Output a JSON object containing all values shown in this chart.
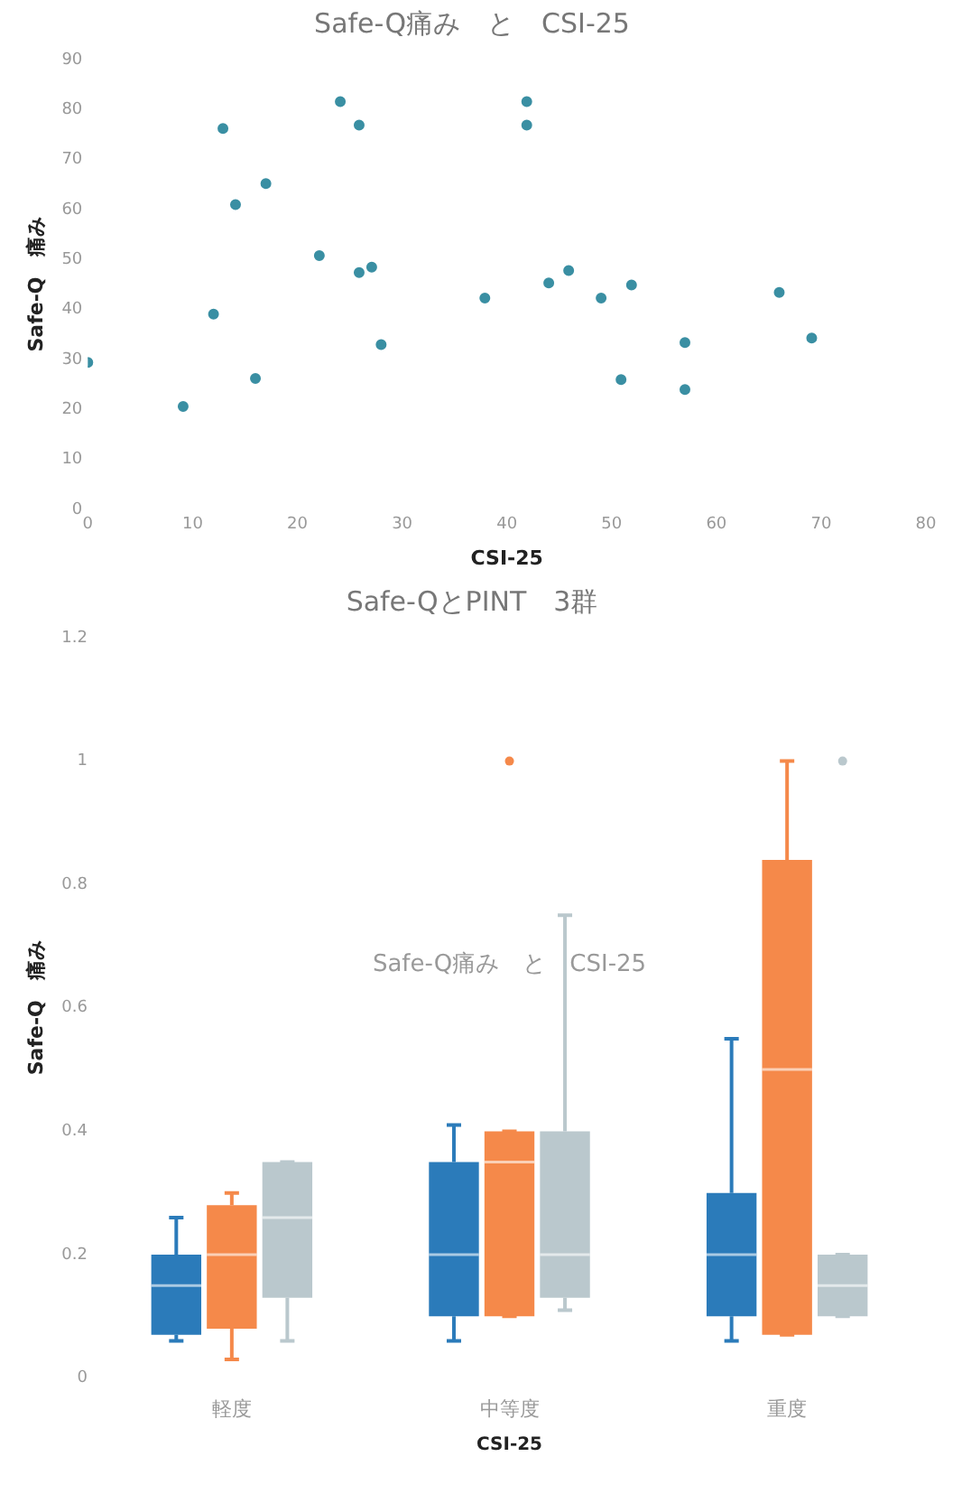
{
  "chart_data": [
    {
      "type": "scatter",
      "title": "Safe-Q痛み　と　CSI-25",
      "xlabel": "CSI-25",
      "ylabel": "Safe-Q　痛み",
      "marker": "circle",
      "grid": false,
      "xlim": [
        0,
        80
      ],
      "xticks": [
        0,
        10,
        20,
        30,
        40,
        50,
        60,
        70,
        80
      ],
      "ylim": [
        0,
        90
      ],
      "yticks": [
        0,
        10,
        20,
        30,
        40,
        50,
        60,
        70,
        80,
        90
      ],
      "series": [
        {
          "color": "#3a8fa3",
          "x": [
            0,
            9.1,
            12,
            12.9,
            14.1,
            16,
            17,
            22.1,
            24.1,
            25.9,
            25.9,
            27.1,
            28,
            37.9,
            41.9,
            41.9,
            44,
            45.9,
            49,
            50.9,
            51.9,
            57,
            57,
            66,
            69.1
          ],
          "values": [
            29.4,
            20.6,
            39.1,
            76.2,
            61,
            26.2,
            65.2,
            50.8,
            81.6,
            76.9,
            47.4,
            48.5,
            33,
            42.3,
            81.6,
            76.9,
            45.3,
            47.8,
            42.3,
            26,
            44.9,
            33.4,
            24,
            43.4,
            34.3
          ]
        }
      ]
    },
    {
      "type": "box",
      "title": "Safe-QとPINT　3群",
      "xlabel": "CSI-25",
      "ylabel": "Safe-Q　痛み",
      "grid": false,
      "annotations": [
        "Safe-Q痛み　と　CSI-25"
      ],
      "categories": [
        "軽度",
        "中等度",
        "重度"
      ],
      "ylim": [
        0,
        1.2
      ],
      "yticks": [
        0,
        0.2,
        0.4,
        0.6,
        0.8,
        1,
        1.2
      ],
      "series": [
        {
          "color": "#2b7bba",
          "boxes": [
            {
              "low": 0.06,
              "q1": 0.07,
              "median": 0.15,
              "q3": 0.2,
              "high": 0.26
            },
            {
              "low": 0.06,
              "q1": 0.1,
              "median": 0.2,
              "q3": 0.35,
              "high": 0.41
            },
            {
              "low": 0.06,
              "q1": 0.1,
              "median": 0.2,
              "q3": 0.3,
              "high": 0.55
            }
          ]
        },
        {
          "color": "#f5894a",
          "boxes": [
            {
              "low": 0.03,
              "q1": 0.08,
              "median": 0.2,
              "q3": 0.28,
              "high": 0.3
            },
            {
              "low": 0.1,
              "q1": 0.1,
              "median": 0.35,
              "q3": 0.4,
              "high": 0.4,
              "outliers": [
                1
              ]
            },
            {
              "low": 0.07,
              "q1": 0.07,
              "median": 0.5,
              "q3": 0.84,
              "high": 1
            }
          ]
        },
        {
          "color": "#bac8cd",
          "boxes": [
            {
              "low": 0.06,
              "q1": 0.13,
              "median": 0.26,
              "q3": 0.35,
              "high": 0.35
            },
            {
              "low": 0.11,
              "q1": 0.13,
              "median": 0.2,
              "q3": 0.4,
              "high": 0.75
            },
            {
              "low": 0.1,
              "q1": 0.1,
              "median": 0.15,
              "q3": 0.2,
              "high": 0.2,
              "outliers": [
                1
              ]
            }
          ]
        }
      ]
    }
  ]
}
